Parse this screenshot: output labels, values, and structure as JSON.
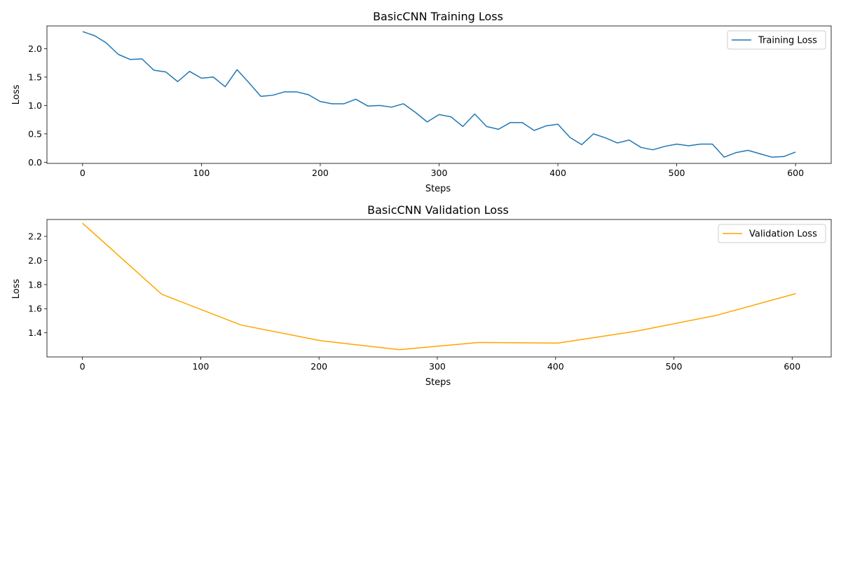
{
  "chart_data": [
    {
      "type": "line",
      "title": "BasicCNN Training Loss",
      "xlabel": "Steps",
      "ylabel": "Loss",
      "xlim": [
        -30,
        630
      ],
      "ylim": [
        -0.02,
        2.4
      ],
      "xticks": [
        0,
        100,
        200,
        300,
        400,
        500,
        600
      ],
      "xtick_labels": [
        "0",
        "100",
        "200",
        "300",
        "400",
        "500",
        "600"
      ],
      "yticks": [
        0.0,
        0.5,
        1.0,
        1.5,
        2.0
      ],
      "ytick_labels": [
        "0.0",
        "0.5",
        "1.0",
        "1.5",
        "2.0"
      ],
      "grid": false,
      "legend": "top-right",
      "series": [
        {
          "name": "Training Loss",
          "color": "#1f77b4",
          "x": [
            0,
            10,
            20,
            30,
            40,
            50,
            60,
            70,
            80,
            90,
            100,
            110,
            120,
            130,
            140,
            150,
            160,
            170,
            180,
            190,
            200,
            210,
            220,
            230,
            240,
            250,
            260,
            270,
            280,
            290,
            300,
            310,
            320,
            330,
            340,
            350,
            360,
            370,
            380,
            390,
            400,
            410,
            420,
            430,
            440,
            450,
            460,
            470,
            480,
            490,
            500,
            510,
            520,
            530,
            540,
            550,
            560,
            570,
            580,
            590,
            600
          ],
          "y": [
            2.3,
            2.23,
            2.1,
            1.9,
            1.81,
            1.82,
            1.62,
            1.59,
            1.42,
            1.6,
            1.48,
            1.5,
            1.33,
            1.63,
            1.4,
            1.16,
            1.18,
            1.24,
            1.24,
            1.19,
            1.07,
            1.03,
            1.03,
            1.11,
            0.99,
            1.0,
            0.97,
            1.03,
            0.88,
            0.71,
            0.84,
            0.8,
            0.63,
            0.85,
            0.63,
            0.58,
            0.7,
            0.7,
            0.56,
            0.64,
            0.67,
            0.44,
            0.31,
            0.5,
            0.43,
            0.34,
            0.39,
            0.26,
            0.22,
            0.28,
            0.32,
            0.29,
            0.32,
            0.32,
            0.09,
            0.17,
            0.21,
            0.15,
            0.09,
            0.1,
            0.18
          ]
        }
      ]
    },
    {
      "type": "line",
      "title": "BasicCNN Validation Loss",
      "xlabel": "Steps",
      "ylabel": "Loss",
      "xlim": [
        -30,
        633
      ],
      "ylim": [
        1.2,
        2.34
      ],
      "xticks": [
        0,
        100,
        200,
        300,
        400,
        500,
        600
      ],
      "xtick_labels": [
        "0",
        "100",
        "200",
        "300",
        "400",
        "500",
        "600"
      ],
      "yticks": [
        1.4,
        1.6,
        1.8,
        2.0,
        2.2
      ],
      "ytick_labels": [
        "1.4",
        "1.6",
        "1.8",
        "2.0",
        "2.2"
      ],
      "grid": false,
      "legend": "top-right",
      "series": [
        {
          "name": "Validation Loss",
          "color": "#ffa500",
          "x": [
            0,
            67,
            134,
            201,
            268,
            335,
            402,
            469,
            536,
            603
          ],
          "y": [
            2.31,
            1.72,
            1.465,
            1.335,
            1.26,
            1.32,
            1.315,
            1.415,
            1.545,
            1.725
          ]
        }
      ]
    }
  ]
}
